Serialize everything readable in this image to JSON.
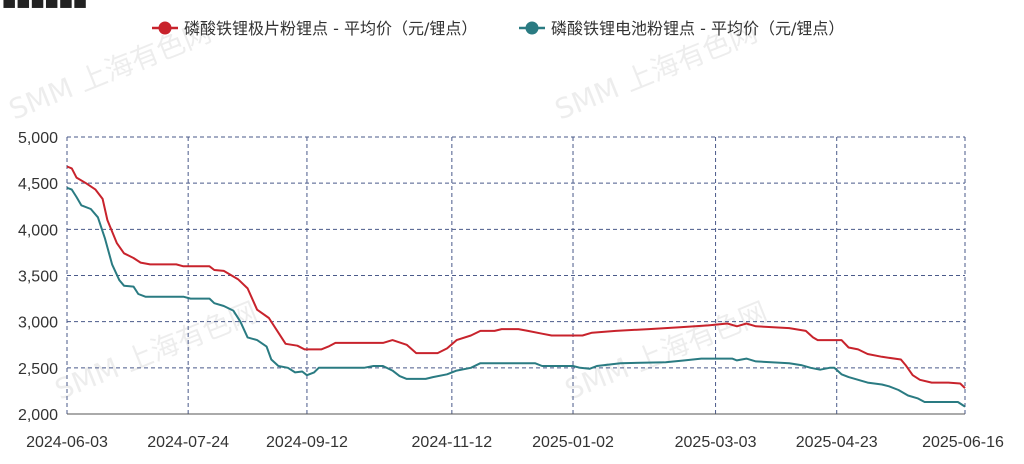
{
  "chart_data": {
    "type": "line",
    "title": "",
    "watermark": "SMM 上海有色网",
    "ylim": [
      2000,
      5000
    ],
    "y_ticks": [
      "5,000",
      "4,500",
      "4,000",
      "3,500",
      "3,000",
      "2,500",
      "2,000"
    ],
    "x_ticks": [
      "2024-06-03",
      "2024-07-24",
      "2024-09-12",
      "2024-11-12",
      "2025-01-02",
      "2025-03-03",
      "2025-04-23",
      "2025-06-16"
    ],
    "grid": true,
    "legend_position": "top",
    "series": [
      {
        "name": "磷酸铁锂极片粉锂点 - 平均价（元/锂点）",
        "color": "#c8232c",
        "points": [
          [
            "2024-06-03",
            4680
          ],
          [
            "2024-06-05",
            4660
          ],
          [
            "2024-06-07",
            4560
          ],
          [
            "2024-06-11",
            4500
          ],
          [
            "2024-06-15",
            4430
          ],
          [
            "2024-06-18",
            4330
          ],
          [
            "2024-06-20",
            4100
          ],
          [
            "2024-06-24",
            3850
          ],
          [
            "2024-06-27",
            3740
          ],
          [
            "2024-07-01",
            3690
          ],
          [
            "2024-07-04",
            3640
          ],
          [
            "2024-07-08",
            3620
          ],
          [
            "2024-07-19",
            3620
          ],
          [
            "2024-07-22",
            3600
          ],
          [
            "2024-08-02",
            3600
          ],
          [
            "2024-08-04",
            3560
          ],
          [
            "2024-08-08",
            3550
          ],
          [
            "2024-08-14",
            3460
          ],
          [
            "2024-08-18",
            3360
          ],
          [
            "2024-08-22",
            3130
          ],
          [
            "2024-08-27",
            3040
          ],
          [
            "2024-08-31",
            2880
          ],
          [
            "2024-09-03",
            2760
          ],
          [
            "2024-09-08",
            2740
          ],
          [
            "2024-09-11",
            2700
          ],
          [
            "2024-09-18",
            2700
          ],
          [
            "2024-09-21",
            2730
          ],
          [
            "2024-09-24",
            2770
          ],
          [
            "2024-10-14",
            2770
          ],
          [
            "2024-10-18",
            2800
          ],
          [
            "2024-10-24",
            2750
          ],
          [
            "2024-10-28",
            2660
          ],
          [
            "2024-11-06",
            2660
          ],
          [
            "2024-11-10",
            2710
          ],
          [
            "2024-11-14",
            2800
          ],
          [
            "2024-11-20",
            2850
          ],
          [
            "2024-11-24",
            2900
          ],
          [
            "2024-11-30",
            2900
          ],
          [
            "2024-12-03",
            2920
          ],
          [
            "2024-12-10",
            2920
          ],
          [
            "2024-12-14",
            2900
          ],
          [
            "2024-12-20",
            2870
          ],
          [
            "2024-12-24",
            2850
          ],
          [
            "2025-01-06",
            2850
          ],
          [
            "2025-01-10",
            2880
          ],
          [
            "2025-01-20",
            2900
          ],
          [
            "2025-02-03",
            2920
          ],
          [
            "2025-02-16",
            2940
          ],
          [
            "2025-02-28",
            2960
          ],
          [
            "2025-03-08",
            2980
          ],
          [
            "2025-03-12",
            2950
          ],
          [
            "2025-03-16",
            2980
          ],
          [
            "2025-03-20",
            2950
          ],
          [
            "2025-04-03",
            2930
          ],
          [
            "2025-04-10",
            2900
          ],
          [
            "2025-04-13",
            2830
          ],
          [
            "2025-04-15",
            2800
          ],
          [
            "2025-04-25",
            2800
          ],
          [
            "2025-04-28",
            2720
          ],
          [
            "2025-05-02",
            2700
          ],
          [
            "2025-05-06",
            2650
          ],
          [
            "2025-05-12",
            2620
          ],
          [
            "2025-05-20",
            2590
          ],
          [
            "2025-05-22",
            2530
          ],
          [
            "2025-05-25",
            2420
          ],
          [
            "2025-05-28",
            2370
          ],
          [
            "2025-06-02",
            2340
          ],
          [
            "2025-06-09",
            2340
          ],
          [
            "2025-06-14",
            2330
          ],
          [
            "2025-06-16",
            2280
          ]
        ]
      },
      {
        "name": "磷酸铁锂电池粉锂点 - 平均价（元/锂点）",
        "color": "#2a7b82",
        "points": [
          [
            "2024-06-03",
            4450
          ],
          [
            "2024-06-05",
            4430
          ],
          [
            "2024-06-07",
            4350
          ],
          [
            "2024-06-09",
            4260
          ],
          [
            "2024-06-13",
            4220
          ],
          [
            "2024-06-16",
            4130
          ],
          [
            "2024-06-19",
            3900
          ],
          [
            "2024-06-22",
            3620
          ],
          [
            "2024-06-25",
            3450
          ],
          [
            "2024-06-27",
            3390
          ],
          [
            "2024-07-01",
            3380
          ],
          [
            "2024-07-03",
            3300
          ],
          [
            "2024-07-06",
            3270
          ],
          [
            "2024-07-22",
            3270
          ],
          [
            "2024-07-25",
            3250
          ],
          [
            "2024-08-02",
            3250
          ],
          [
            "2024-08-04",
            3200
          ],
          [
            "2024-08-08",
            3170
          ],
          [
            "2024-08-12",
            3120
          ],
          [
            "2024-08-15",
            3000
          ],
          [
            "2024-08-18",
            2830
          ],
          [
            "2024-08-22",
            2800
          ],
          [
            "2024-08-26",
            2730
          ],
          [
            "2024-08-28",
            2590
          ],
          [
            "2024-08-31",
            2520
          ],
          [
            "2024-09-04",
            2500
          ],
          [
            "2024-09-07",
            2450
          ],
          [
            "2024-09-10",
            2460
          ],
          [
            "2024-09-12",
            2420
          ],
          [
            "2024-09-15",
            2450
          ],
          [
            "2024-09-17",
            2500
          ],
          [
            "2024-10-06",
            2500
          ],
          [
            "2024-10-10",
            2520
          ],
          [
            "2024-10-14",
            2520
          ],
          [
            "2024-10-18",
            2470
          ],
          [
            "2024-10-21",
            2410
          ],
          [
            "2024-10-24",
            2380
          ],
          [
            "2024-11-01",
            2380
          ],
          [
            "2024-11-04",
            2400
          ],
          [
            "2024-11-10",
            2430
          ],
          [
            "2024-11-14",
            2470
          ],
          [
            "2024-11-20",
            2500
          ],
          [
            "2024-11-24",
            2550
          ],
          [
            "2024-12-17",
            2550
          ],
          [
            "2024-12-20",
            2520
          ],
          [
            "2025-01-02",
            2520
          ],
          [
            "2025-01-05",
            2500
          ],
          [
            "2025-01-09",
            2490
          ],
          [
            "2025-01-12",
            2520
          ],
          [
            "2025-01-22",
            2550
          ],
          [
            "2025-02-10",
            2560
          ],
          [
            "2025-02-18",
            2580
          ],
          [
            "2025-02-25",
            2600
          ],
          [
            "2025-03-10",
            2600
          ],
          [
            "2025-03-12",
            2580
          ],
          [
            "2025-03-16",
            2600
          ],
          [
            "2025-03-20",
            2570
          ],
          [
            "2025-04-03",
            2550
          ],
          [
            "2025-04-08",
            2530
          ],
          [
            "2025-04-12",
            2500
          ],
          [
            "2025-04-16",
            2480
          ],
          [
            "2025-04-20",
            2500
          ],
          [
            "2025-04-22",
            2500
          ],
          [
            "2025-04-25",
            2430
          ],
          [
            "2025-04-28",
            2400
          ],
          [
            "2025-05-02",
            2370
          ],
          [
            "2025-05-06",
            2340
          ],
          [
            "2025-05-12",
            2320
          ],
          [
            "2025-05-15",
            2300
          ],
          [
            "2025-05-19",
            2260
          ],
          [
            "2025-05-23",
            2200
          ],
          [
            "2025-05-27",
            2170
          ],
          [
            "2025-05-30",
            2130
          ],
          [
            "2025-06-13",
            2130
          ],
          [
            "2025-06-16",
            2080
          ]
        ]
      }
    ]
  }
}
